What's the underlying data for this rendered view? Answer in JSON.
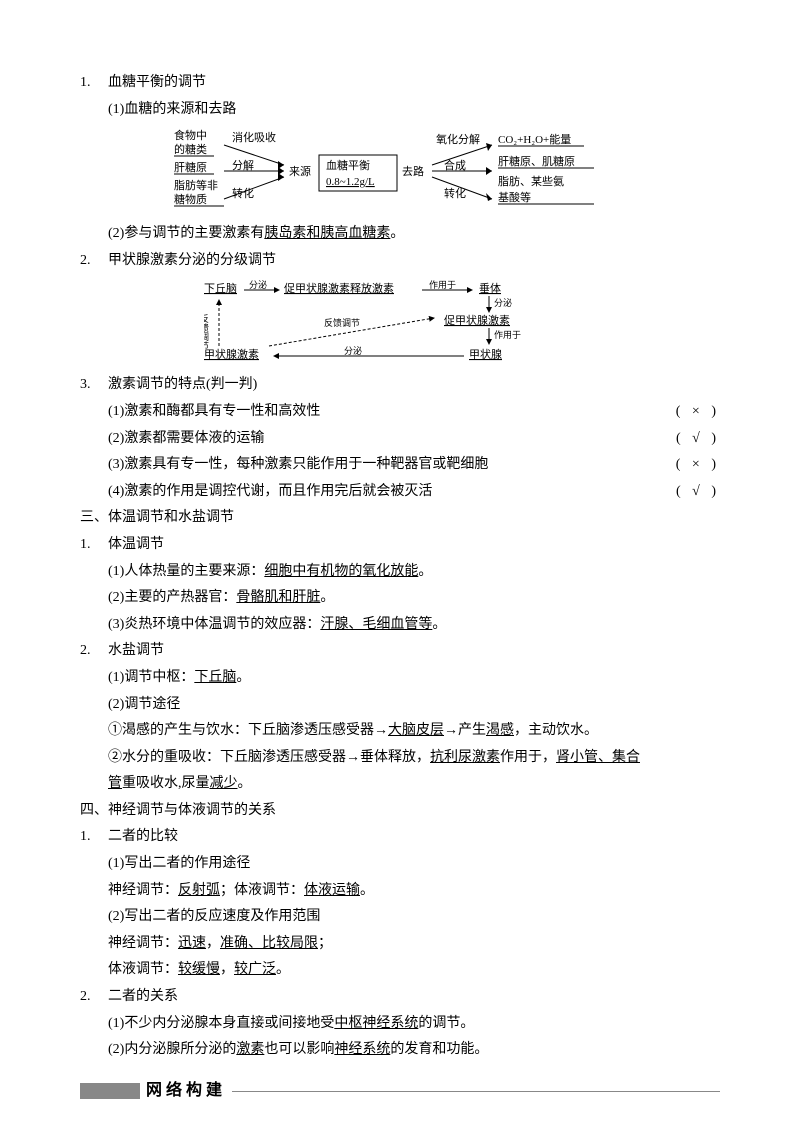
{
  "s1": {
    "num": "1.",
    "title": "血糖平衡的调节",
    "p1": "(1)血糖的来源和去路",
    "p2a": "(2)参与调节的主要激素有",
    "p2u": "胰岛素和胰高血糖素",
    "p2b": "。",
    "diagram": {
      "left": {
        "l1": "食物中",
        "l2": "的糖类",
        "l3": "肝糖原",
        "l4": "脂肪等非",
        "l5": "糖物质"
      },
      "arrows_left": {
        "a1": "消化吸收",
        "a2": "分解",
        "a3": "转化"
      },
      "src": "来源",
      "center": {
        "l1": "血糖平衡",
        "l2": "0.8~1.2g/L"
      },
      "dst": "去路",
      "arrows_right": {
        "a1": "氧化分解",
        "a2": "合成",
        "a3": "转化"
      },
      "right": {
        "l1": "CO₂+H₂O+能量",
        "l2": "肝糖原、肌糖原",
        "l3": "脂肪、某些氨",
        "l4": "基酸等"
      }
    }
  },
  "s2": {
    "num": "2.",
    "title": "甲状腺激素分泌的分级调节",
    "diagram": {
      "top": {
        "a": "下丘脑",
        "b": "分泌",
        "c": "促甲状腺激素释放激素",
        "d": "作用于",
        "e": "垂体"
      },
      "mid": {
        "a": "反馈调节",
        "b": "反馈调节",
        "c": "分泌",
        "d": "促甲状腺激素",
        "e": "作用于"
      },
      "bot": {
        "a": "甲状腺激素",
        "b": "分泌",
        "c": "甲状腺"
      }
    }
  },
  "s3": {
    "num": "3.",
    "title": "激素调节的特点(判一判)",
    "items": [
      {
        "t": "(1)激素和酶都具有专一性和高效性",
        "m": "( × )"
      },
      {
        "t": "(2)激素都需要体液的运输",
        "m": "( √ )"
      },
      {
        "t": "(3)激素具有专一性，每种激素只能作用于一种靶器官或靶细胞",
        "m": "( × )"
      },
      {
        "t": "(4)激素的作用是调控代谢，而且作用完后就会被灭活",
        "m": "( √ )"
      }
    ]
  },
  "h3": "三、体温调节和水盐调节",
  "s3_1": {
    "num": "1.",
    "title": "体温调节",
    "p1a": "(1)人体热量的主要来源：",
    "p1u": "细胞中有机物的氧化放能",
    "p1b": "。",
    "p2a": "(2)主要的产热器官：",
    "p2u": "骨骼肌和肝脏",
    "p2b": "。",
    "p3a": "(3)炎热环境中体温调节的效应器：",
    "p3u": "汗腺、毛细血管等",
    "p3b": "。"
  },
  "s3_2": {
    "num": "2.",
    "title": "水盐调节",
    "p1a": "(1)调节中枢：",
    "p1u": "下丘脑",
    "p1b": "。",
    "p2": "(2)调节途径",
    "p3a": "①渴感的产生与饮水：下丘脑渗透压感受器→",
    "p3u1": "大脑皮层",
    "p3b": "→产生",
    "p3u2": "渴感",
    "p3c": "，主动饮水。",
    "p4a": "②水分的重吸收：下丘脑渗透压感受器→垂体释放，",
    "p4u1": "抗利尿激素",
    "p4b": "作用于，",
    "p4u2": "肾小管、集合",
    "p4u3": "管",
    "p4c": "重吸收水,尿量",
    "p4u4": "减少",
    "p4d": "。"
  },
  "h4": "四、神经调节与体液调节的关系",
  "s4_1": {
    "num": "1.",
    "title": "二者的比较",
    "p1": "(1)写出二者的作用途径",
    "p2a": "神经调节：",
    "p2u1": "反射弧",
    "p2b": "；体液调节：",
    "p2u2": "体液运输",
    "p2c": "。",
    "p3": "(2)写出二者的反应速度及作用范围",
    "p4a": "神经调节：",
    "p4u1": "迅速",
    "p4b": "，",
    "p4u2": "准确、比较局限",
    "p4c": "；",
    "p5a": "体液调节：",
    "p5u1": "较缓慢",
    "p5b": "，",
    "p5u2": "较广泛",
    "p5c": "。"
  },
  "s4_2": {
    "num": "2.",
    "title": "二者的关系",
    "p1a": "(1)不少内分泌腺本身直接或间接地受",
    "p1u": "中枢神经系统",
    "p1b": "的调节。",
    "p2a": "(2)内分泌腺所分泌的",
    "p2u1": "激素",
    "p2b": "也可以影响",
    "p2u2": "神经系统",
    "p2c": "的发育和功能。"
  },
  "banner": "网络构建"
}
